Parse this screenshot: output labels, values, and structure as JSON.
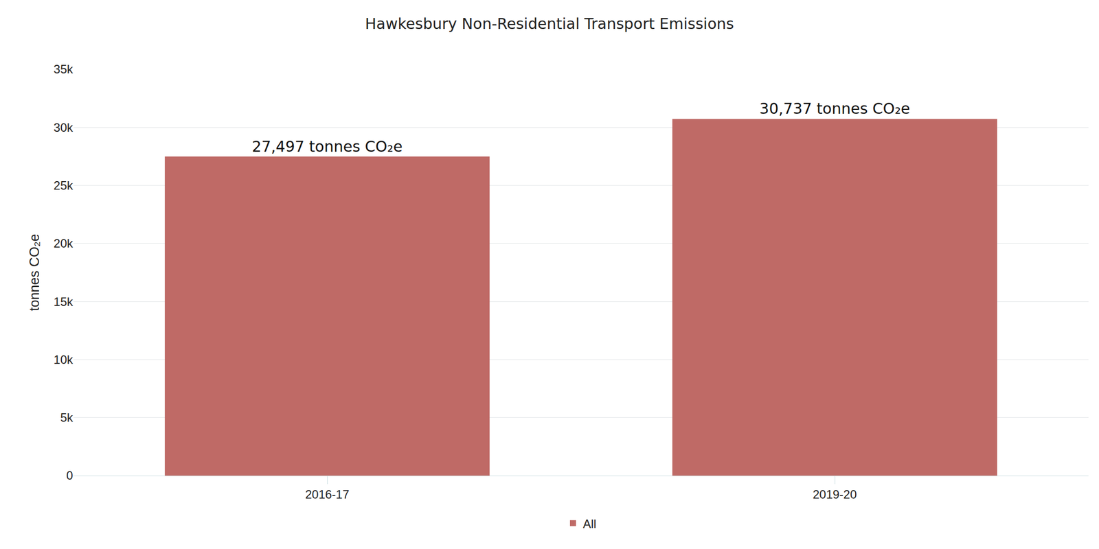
{
  "chart_data": {
    "type": "bar",
    "title": "Hawkesbury Non-Residential Transport Emissions",
    "y_label": "tonnes CO₂e",
    "categories": [
      "2016-17",
      "2019-20"
    ],
    "series": [
      {
        "name": "All",
        "color": "#bf6a66",
        "values": [
          27497,
          30737
        ],
        "value_labels": [
          "27,497 tonnes CO₂e",
          "30,737 tonnes CO₂e"
        ]
      }
    ],
    "ylim": [
      0,
      35000
    ],
    "yticks": [
      0,
      {
        "value": 5000,
        "label": "5k"
      },
      {
        "value": 10000,
        "label": "10k"
      },
      {
        "value": 15000,
        "label": "15k"
      },
      {
        "value": 20000,
        "label": "20k"
      },
      {
        "value": 25000,
        "label": "25k"
      },
      {
        "value": 30000,
        "label": "30k"
      },
      {
        "value": 35000,
        "label": "35k"
      }
    ],
    "grid": true,
    "data_labels": true,
    "legend": "bottom"
  }
}
